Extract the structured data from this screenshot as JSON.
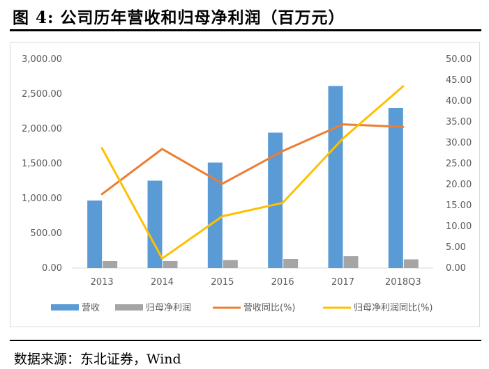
{
  "title": "图  4: 公司历年营收和归母净利润（百万元）",
  "source": "数据来源：东北证券，Wind",
  "colors": {
    "revenue": "#5b9bd5",
    "net_profit": "#a5a5a5",
    "revenue_yoy": "#ed7d31",
    "profit_yoy": "#ffc000"
  },
  "chart_data": {
    "type": "bar",
    "categories": [
      "2013",
      "2014",
      "2015",
      "2016",
      "2017",
      "2018Q3"
    ],
    "y_left": {
      "ticks": [
        "0.00",
        "500.00",
        "1,000.00",
        "1,500.00",
        "2,000.00",
        "2,500.00",
        "3,000.00"
      ],
      "ylim": [
        0,
        3000
      ]
    },
    "y_right": {
      "ticks": [
        "0.00",
        "5.00",
        "10.00",
        "15.00",
        "20.00",
        "25.00",
        "30.00",
        "35.00",
        "40.00",
        "45.00",
        "50.00"
      ],
      "ylim": [
        0,
        50
      ]
    },
    "series": [
      {
        "name": "营收",
        "type": "bar",
        "axis": "left",
        "values": [
          970,
          1255,
          1515,
          1945,
          2615,
          2300
        ]
      },
      {
        "name": "归母净利润",
        "type": "bar",
        "axis": "left",
        "values": [
          100,
          100,
          115,
          130,
          170,
          125
        ]
      },
      {
        "name": "营收同比(%)",
        "type": "line",
        "axis": "right",
        "values": [
          17.7,
          28.5,
          20.2,
          28.0,
          34.4,
          33.8
        ]
      },
      {
        "name": "归母净利润同比(%)",
        "type": "line",
        "axis": "right",
        "values": [
          28.7,
          2.3,
          12.4,
          15.6,
          31.0,
          43.5
        ]
      }
    ],
    "legend_position": "bottom",
    "grid": false
  }
}
